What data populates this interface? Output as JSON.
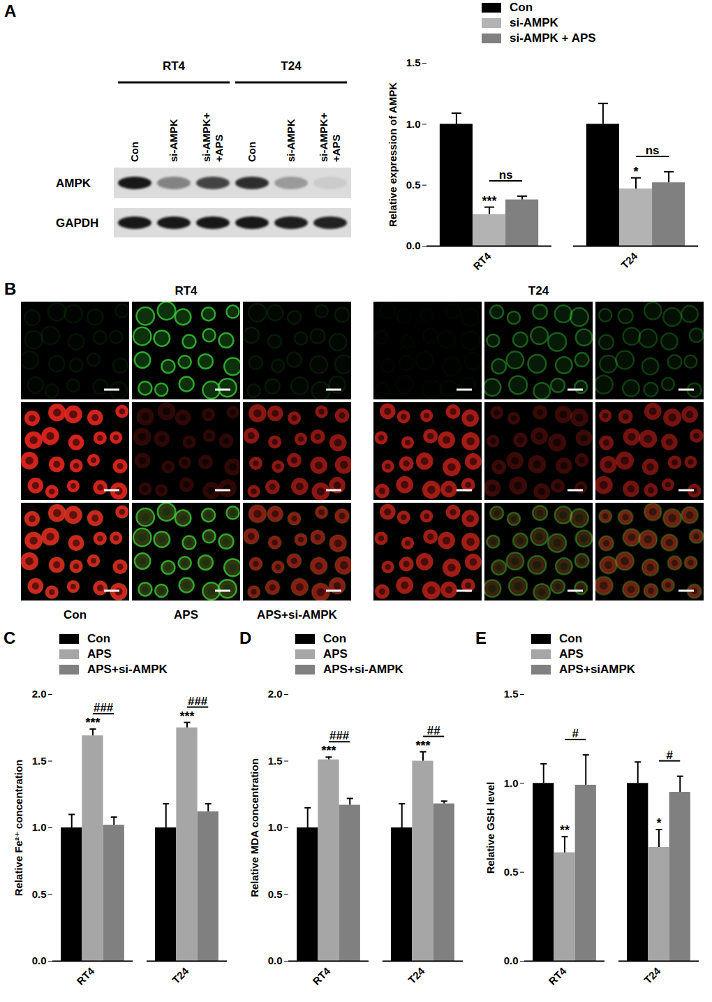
{
  "panel_letters": [
    "A",
    "B",
    "C",
    "D",
    "E"
  ],
  "western_blot": {
    "groups": [
      {
        "label": "RT4",
        "lanes": [
          "Con",
          "si-AMPK",
          "si-AMPK+\n+APS"
        ]
      },
      {
        "label": "T24",
        "lanes": [
          "Con",
          "si-AMPK",
          "si-AMPK+\n+APS"
        ]
      }
    ],
    "rows": [
      {
        "label": "AMPK",
        "band_intensity": [
          0.95,
          0.45,
          0.75,
          0.85,
          0.3,
          0.08
        ]
      },
      {
        "label": "GAPDH",
        "band_intensity": [
          0.95,
          0.95,
          0.95,
          0.95,
          0.92,
          0.9
        ]
      }
    ]
  },
  "microscopy": {
    "groups": [
      {
        "title": "RT4",
        "column_labels": [
          "Con",
          "APS",
          "APS+si-AMPK"
        ],
        "images": [
          {
            "green": 0.08,
            "red": 0.9
          },
          {
            "green": 0.75,
            "red": 0.2
          },
          {
            "green": 0.1,
            "red": 0.6
          }
        ]
      },
      {
        "title": "T24",
        "images": [
          {
            "green": 0.03,
            "red": 0.7
          },
          {
            "green": 0.4,
            "red": 0.25
          },
          {
            "green": 0.25,
            "red": 0.5
          }
        ]
      }
    ]
  },
  "chart_data": [
    {
      "type": "bar",
      "y_label": "Relative expression of AMPK",
      "categories": [
        "RT4",
        "T24"
      ],
      "series": [
        {
          "name": "Con",
          "color": "#000000",
          "values": [
            1.0,
            1.0
          ],
          "errors": [
            0.09,
            0.17
          ]
        },
        {
          "name": "si-AMPK",
          "color": "#b3b3b3",
          "values": [
            0.26,
            0.47
          ],
          "errors": [
            0.06,
            0.09
          ]
        },
        {
          "name": "si-AMPK + APS",
          "color": "#808080",
          "values": [
            0.38,
            0.52
          ],
          "errors": [
            0.03,
            0.09
          ]
        }
      ],
      "ylim": [
        0,
        1.5
      ],
      "yticks": [
        {
          "value": 0,
          "label": "0.0"
        },
        {
          "value": 0.5,
          "label": "0.5"
        },
        {
          "value": 1,
          "label": "1.0"
        },
        {
          "value": 1.5,
          "label": "1.5"
        }
      ],
      "legend": "top",
      "annotations": [
        {
          "text": "***",
          "category": "RT4",
          "series": "si-AMPK"
        },
        {
          "text": "*",
          "category": "T24",
          "series": "si-AMPK"
        },
        {
          "text": "ns",
          "category": "RT4",
          "from": "si-AMPK",
          "to": "si-AMPK + APS"
        },
        {
          "text": "ns",
          "category": "T24",
          "from": "si-AMPK",
          "to": "si-AMPK + APS"
        }
      ]
    },
    {
      "type": "bar",
      "y_label": "Relative Fe²⁺ concentration",
      "categories": [
        "RT4",
        "T24"
      ],
      "series": [
        {
          "name": "Con",
          "color": "#000000",
          "values": [
            1.0,
            1.0
          ],
          "errors": [
            0.1,
            0.18
          ]
        },
        {
          "name": "APS",
          "color": "#a6a6a6",
          "values": [
            1.69,
            1.75
          ],
          "errors": [
            0.05,
            0.04
          ]
        },
        {
          "name": "APS+si-AMPK",
          "color": "#808080",
          "values": [
            1.02,
            1.12
          ],
          "errors": [
            0.06,
            0.06
          ]
        }
      ],
      "ylim": [
        0,
        2
      ],
      "yticks": [
        {
          "value": 0,
          "label": "0.0"
        },
        {
          "value": 0.5,
          "label": "0.5"
        },
        {
          "value": 1,
          "label": "1.0"
        },
        {
          "value": 1.5,
          "label": "1.5"
        },
        {
          "value": 2,
          "label": "2.0"
        }
      ],
      "legend": "top",
      "annotations": [
        {
          "text": "***",
          "category": "RT4",
          "series": "APS"
        },
        {
          "text": "***",
          "category": "T24",
          "series": "APS"
        },
        {
          "text": "###",
          "category": "RT4",
          "from": "APS",
          "to": "APS+si-AMPK"
        },
        {
          "text": "###",
          "category": "T24",
          "from": "APS",
          "to": "APS+si-AMPK"
        }
      ]
    },
    {
      "type": "bar",
      "y_label": "Relative MDA concentration",
      "categories": [
        "RT4",
        "T24"
      ],
      "series": [
        {
          "name": "Con",
          "color": "#000000",
          "values": [
            1.0,
            1.0
          ],
          "errors": [
            0.15,
            0.18
          ]
        },
        {
          "name": "APS",
          "color": "#a6a6a6",
          "values": [
            1.51,
            1.5
          ],
          "errors": [
            0.02,
            0.07
          ]
        },
        {
          "name": "APS+si-AMPK",
          "color": "#808080",
          "values": [
            1.17,
            1.18
          ],
          "errors": [
            0.05,
            0.02
          ]
        }
      ],
      "ylim": [
        0,
        2
      ],
      "yticks": [
        {
          "value": 0,
          "label": "0.0"
        },
        {
          "value": 0.5,
          "label": "0.5"
        },
        {
          "value": 1,
          "label": "1.0"
        },
        {
          "value": 1.5,
          "label": "1.5"
        },
        {
          "value": 2,
          "label": "2.0"
        }
      ],
      "legend": "top",
      "annotations": [
        {
          "text": "***",
          "category": "RT4",
          "series": "APS"
        },
        {
          "text": "***",
          "category": "T24",
          "series": "APS"
        },
        {
          "text": "###",
          "category": "RT4",
          "from": "APS",
          "to": "APS+si-AMPK"
        },
        {
          "text": "##",
          "category": "T24",
          "from": "APS",
          "to": "APS+si-AMPK"
        }
      ]
    },
    {
      "type": "bar",
      "y_label": "Relative GSH level",
      "categories": [
        "RT4",
        "T24"
      ],
      "series": [
        {
          "name": "Con",
          "color": "#000000",
          "values": [
            1.0,
            1.0
          ],
          "errors": [
            0.11,
            0.12
          ]
        },
        {
          "name": "APS",
          "color": "#a6a6a6",
          "values": [
            0.61,
            0.64
          ],
          "errors": [
            0.09,
            0.1
          ]
        },
        {
          "name": "APS+siAMPK",
          "color": "#808080",
          "values": [
            0.99,
            0.95
          ],
          "errors": [
            0.17,
            0.09
          ]
        }
      ],
      "ylim": [
        0,
        1.5
      ],
      "yticks": [
        {
          "value": 0,
          "label": "0.0"
        },
        {
          "value": 0.5,
          "label": "0.5"
        },
        {
          "value": 1,
          "label": "1.0"
        },
        {
          "value": 1.5,
          "label": "1.5"
        }
      ],
      "legend": "top",
      "annotations": [
        {
          "text": "**",
          "category": "RT4",
          "series": "APS"
        },
        {
          "text": "*",
          "category": "T24",
          "series": "APS"
        },
        {
          "text": "#",
          "category": "RT4",
          "from": "APS",
          "to": "APS+siAMPK"
        },
        {
          "text": "#",
          "category": "T24",
          "from": "APS",
          "to": "APS+siAMPK"
        }
      ]
    }
  ]
}
